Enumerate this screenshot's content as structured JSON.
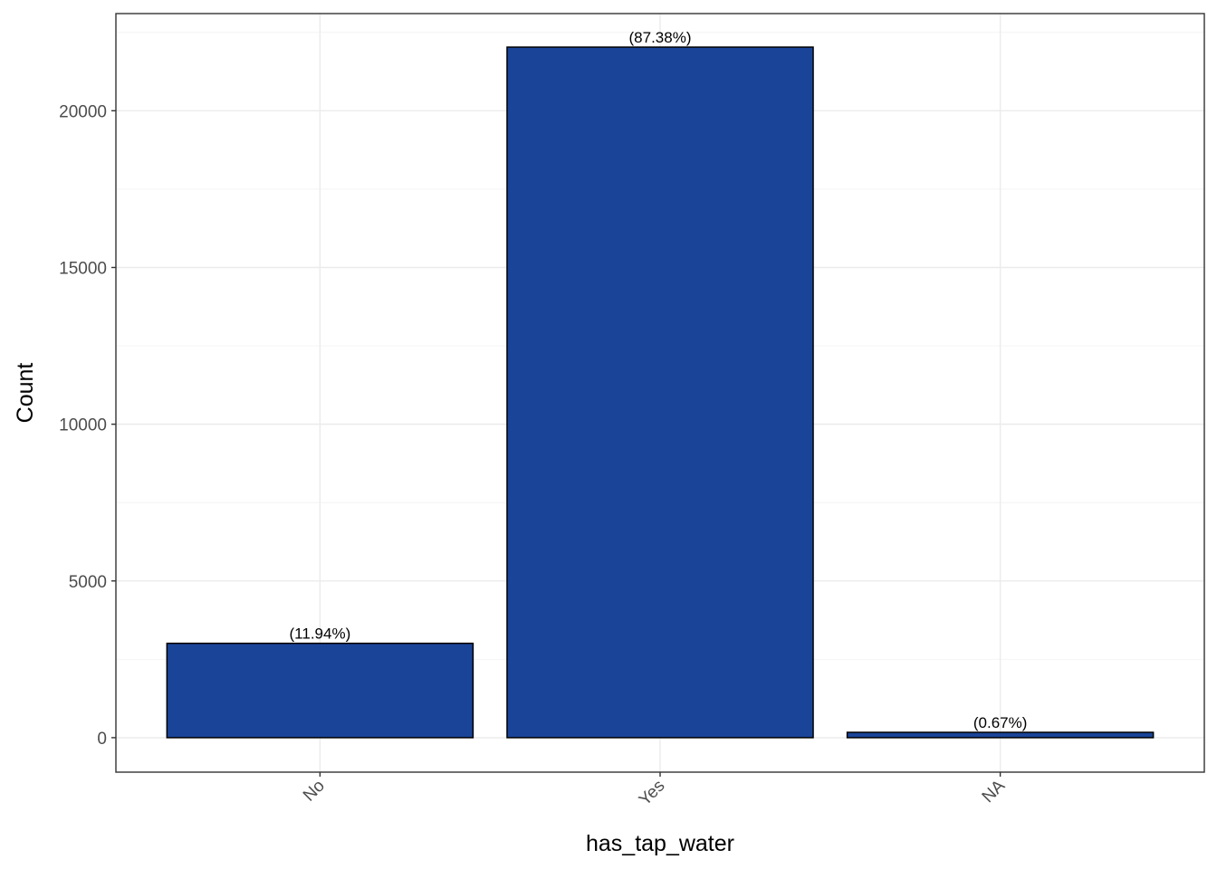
{
  "chart_data": {
    "type": "bar",
    "categories": [
      "No",
      "Yes",
      "NA"
    ],
    "values": [
      3010,
      22030,
      170
    ],
    "data_labels": [
      "(11.94%)",
      "(87.38%)",
      "(0.67%)"
    ],
    "title": "",
    "xlabel": "has_tap_water",
    "ylabel": "Count",
    "ylim": [
      -1100,
      23100
    ],
    "y_ticks": [
      0,
      5000,
      10000,
      15000,
      20000
    ],
    "y_tick_labels": [
      "0",
      "5000",
      "10000",
      "15000",
      "20000"
    ],
    "grid": true,
    "legend": "none",
    "x_tick_rotation_deg": -45
  },
  "colors": {
    "bar_fill": "#1a4498",
    "bar_outline": "#000000",
    "panel_border": "#333333",
    "grid_major": "#ebebeb",
    "grid_minor": "#f4f4f4",
    "tick_text": "#4d4d4d"
  }
}
